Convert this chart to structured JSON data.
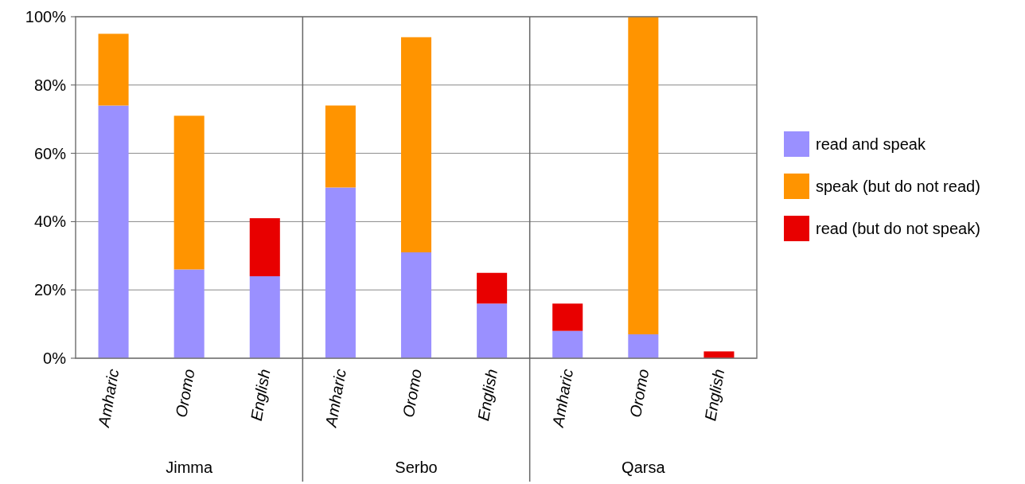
{
  "chart_data": {
    "type": "bar",
    "stacked": true,
    "categories": [
      "Amharic",
      "Oromo",
      "English",
      "Amharic",
      "Oromo",
      "English",
      "Amharic",
      "Oromo",
      "English"
    ],
    "series": [
      {
        "name": "read and speak",
        "color": "#9a90ff",
        "values": [
          74,
          26,
          24,
          50,
          31,
          16,
          8,
          7,
          0
        ]
      },
      {
        "name": "speak (but do not read)",
        "color": "#ff9400",
        "values": [
          21,
          45,
          0,
          24,
          63,
          0,
          0,
          93,
          0
        ]
      },
      {
        "name": "read (but do not speak)",
        "color": "#e80000",
        "values": [
          0,
          0,
          17,
          0,
          0,
          9,
          8,
          0,
          2
        ]
      }
    ],
    "ylim": [
      0,
      100
    ],
    "yticks": [
      {
        "value": 0,
        "label": "0%"
      },
      {
        "value": 20,
        "label": "20%"
      },
      {
        "value": 40,
        "label": "40%"
      },
      {
        "value": 60,
        "label": "60%"
      },
      {
        "value": 80,
        "label": "80%"
      },
      {
        "value": 100,
        "label": "100%"
      }
    ],
    "grid": "y",
    "legend": "right",
    "annotations": [
      "Jimma",
      "Serbo",
      "Qarsa"
    ]
  }
}
